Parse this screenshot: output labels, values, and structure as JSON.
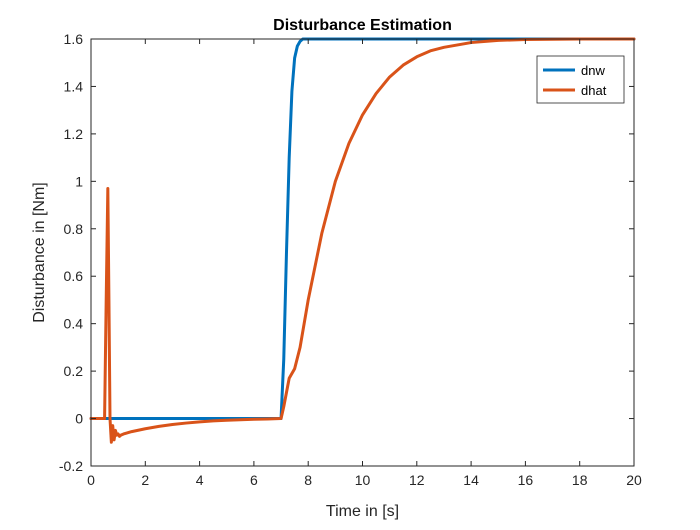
{
  "chart_data": {
    "type": "line",
    "title": "Disturbance Estimation",
    "xlabel": "Time in [s]",
    "ylabel": "Disturbance in [Nm]",
    "xlim": [
      0,
      20
    ],
    "ylim": [
      -0.2,
      1.6
    ],
    "xticks": [
      0,
      2,
      4,
      6,
      8,
      10,
      12,
      14,
      16,
      18,
      20
    ],
    "yticks": [
      -0.2,
      0,
      0.2,
      0.4,
      0.6,
      0.8,
      1,
      1.2,
      1.4,
      1.6
    ],
    "xtick_labels": [
      "0",
      "2",
      "4",
      "6",
      "8",
      "10",
      "12",
      "14",
      "16",
      "18",
      "20"
    ],
    "ytick_labels": [
      "-0.2",
      "0",
      "0.2",
      "0.4",
      "0.6",
      "0.8",
      "1",
      "1.2",
      "1.4",
      "1.6"
    ],
    "grid": false,
    "box": true,
    "legend_location": "top-right",
    "series": [
      {
        "name": "dnw",
        "color": "#0072BD",
        "x": [
          0,
          7.0,
          7.1,
          7.2,
          7.3,
          7.4,
          7.5,
          7.6,
          7.7,
          7.8,
          8.0,
          8.5,
          10,
          20
        ],
        "y": [
          0,
          0,
          0.25,
          0.7,
          1.1,
          1.38,
          1.52,
          1.57,
          1.59,
          1.6,
          1.6,
          1.6,
          1.6,
          1.6
        ]
      },
      {
        "name": "dhat",
        "color": "#D95319",
        "x": [
          0,
          0.5,
          0.56,
          0.62,
          0.66,
          0.7,
          0.75,
          0.8,
          0.85,
          0.9,
          0.95,
          1.0,
          1.05,
          1.1,
          1.2,
          1.5,
          2.0,
          2.5,
          3.0,
          3.5,
          4.0,
          4.5,
          5.0,
          5.5,
          6.0,
          6.5,
          7.0,
          7.1,
          7.2,
          7.3,
          7.5,
          7.7,
          8.0,
          8.5,
          9.0,
          9.5,
          10.0,
          10.5,
          11.0,
          11.5,
          12.0,
          12.5,
          13.0,
          14.0,
          15.0,
          16.0,
          17.0,
          18.0,
          20.0
        ],
        "y": [
          0,
          0,
          0.5,
          0.97,
          0.5,
          0.0,
          -0.1,
          -0.03,
          -0.09,
          -0.05,
          -0.07,
          -0.065,
          -0.075,
          -0.07,
          -0.065,
          -0.055,
          -0.043,
          -0.033,
          -0.025,
          -0.019,
          -0.014,
          -0.01,
          -0.007,
          -0.005,
          -0.003,
          -0.002,
          0.0,
          0.05,
          0.11,
          0.17,
          0.21,
          0.3,
          0.5,
          0.78,
          1.0,
          1.16,
          1.28,
          1.37,
          1.44,
          1.49,
          1.525,
          1.55,
          1.565,
          1.585,
          1.594,
          1.598,
          1.599,
          1.6,
          1.6
        ]
      }
    ]
  }
}
